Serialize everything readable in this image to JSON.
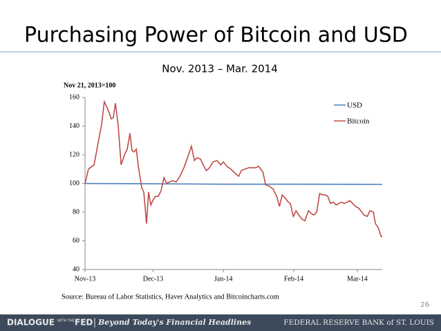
{
  "chart_data": {
    "type": "line",
    "title": "Purchasing Power of Bitcoin and USD",
    "subtitle": "Nov. 2013 – Mar. 2014",
    "y_axis_label": "Nov 21, 2013=100",
    "source": "Source: Bureau of Labor Statistics, Haver Analytics and Bitcoincharts.com",
    "xlim": [
      0,
      131
    ],
    "xticks": [
      {
        "value": 0,
        "label": "Nov-13"
      },
      {
        "value": 30,
        "label": "Dec-13"
      },
      {
        "value": 61,
        "label": "Jan-14"
      },
      {
        "value": 92,
        "label": "Feb-14"
      },
      {
        "value": 120,
        "label": "Mar-14"
      }
    ],
    "ylim": [
      40,
      160
    ],
    "yticks": [
      40,
      60,
      80,
      100,
      120,
      140,
      160
    ],
    "legend": "top-right",
    "series": [
      {
        "name": "USD",
        "color": "#4a7ebb",
        "x": [
          0,
          30,
          61,
          92,
          131
        ],
        "values": [
          100,
          99.8,
          99.5,
          99.5,
          99.4
        ]
      },
      {
        "name": "Bitcoin",
        "color": "#be4b48",
        "x": [
          0,
          1.5,
          4,
          5.5,
          7.3,
          8.5,
          10,
          11.6,
          12.5,
          13.4,
          14.6,
          15.9,
          17.4,
          18.6,
          19.8,
          20.7,
          21.6,
          22.6,
          23.5,
          25,
          25.9,
          27.1,
          28,
          29,
          30.2,
          31.1,
          32.3,
          33.5,
          34.8,
          36,
          37.2,
          38.7,
          40.2,
          41.8,
          43.6,
          45.4,
          46.9,
          48.2,
          49.4,
          50.9,
          51.8,
          53.4,
          54.9,
          56.4,
          58.2,
          59.8,
          61,
          62.5,
          64.3,
          66.2,
          67.7,
          68.9,
          70.4,
          72.3,
          73.8,
          75.3,
          76.5,
          78.4,
          79.6,
          81.4,
          82.9,
          84.5,
          85.7,
          86.9,
          88.1,
          89.6,
          90.5,
          91.8,
          93,
          94.2,
          95.7,
          96.9,
          98.5,
          99.7,
          100.9,
          102.1,
          103.4,
          104.6,
          105.8,
          107,
          108.2,
          109.5,
          110.7,
          111.9,
          113.1,
          114.3,
          115.5,
          116.8,
          118,
          119.2,
          120.4,
          121.6,
          122.9,
          124.4,
          125.6,
          127.1,
          128,
          129.3,
          130.5,
          131
        ],
        "values": [
          100,
          110,
          113,
          126,
          141,
          157,
          152,
          145,
          146,
          156,
          141,
          113,
          120,
          124,
          135,
          123,
          122,
          124,
          112,
          97,
          94,
          72,
          94,
          85,
          89,
          91,
          91,
          95,
          104,
          100,
          101,
          102,
          101,
          105,
          111,
          119,
          126,
          116,
          118,
          117,
          114,
          109,
          111,
          115,
          116,
          113,
          115,
          112,
          110,
          107,
          105,
          109,
          110,
          111,
          111,
          111,
          112,
          108,
          99,
          98,
          96,
          91,
          84,
          92,
          90,
          87,
          86,
          77,
          81,
          78,
          75,
          74,
          81,
          79,
          78,
          80,
          93,
          92,
          92,
          91,
          86,
          87,
          85,
          86,
          87,
          86,
          87,
          88,
          86,
          84,
          83,
          81,
          78,
          77,
          81,
          80,
          72,
          69,
          63,
          63
        ]
      }
    ]
  },
  "page_number": "26",
  "footer": {
    "left": "DIALOGUE",
    "left_small": "WITH THE",
    "left_fed": "FED",
    "tagline": "Beyond Today's Financial Headlines",
    "right": "FEDERAL RESERVE BANK of ST. LOUIS"
  }
}
